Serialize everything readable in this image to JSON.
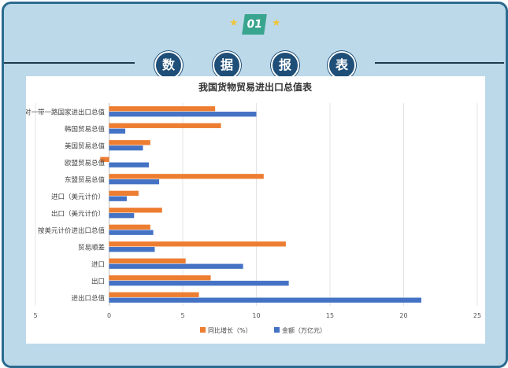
{
  "header": {
    "badge_number": "01",
    "section_chars": [
      "数",
      "据",
      "报",
      "表"
    ]
  },
  "colors": {
    "growth": "#ed7d31",
    "amount": "#4472c4",
    "frame": "#2b6b8f",
    "background": "#bcd9ea",
    "circle": "#1f4f78"
  },
  "chart_data": {
    "type": "bar",
    "orientation": "horizontal",
    "title": "我国货物贸易进出口总值表",
    "categories": [
      "对一带一路国家进出口总值",
      "韩国贸易总值",
      "美国贸易总值",
      "欧盟贸易总值",
      "东盟贸易总值",
      "进口（美元计价）",
      "出口（美元计价）",
      "按美元计价进出口总值",
      "贸易顺差",
      "进口",
      "出口",
      "进出口总值"
    ],
    "series": [
      {
        "name": "同比增长（%）",
        "color": "#ed7d31",
        "values": [
          7.2,
          7.6,
          2.8,
          -0.6,
          10.5,
          2.0,
          3.6,
          2.8,
          12.0,
          5.2,
          6.9,
          6.1
        ]
      },
      {
        "name": "金额（万亿元）",
        "color": "#4472c4",
        "values": [
          10.0,
          1.1,
          2.3,
          2.7,
          3.4,
          1.2,
          1.7,
          3.0,
          3.1,
          9.1,
          12.2,
          21.2
        ]
      }
    ],
    "xlim": [
      -5,
      25
    ],
    "xticks": [
      "5",
      "0",
      "5",
      "10",
      "15",
      "20",
      "25"
    ],
    "grid": true,
    "legend": "bottom"
  }
}
